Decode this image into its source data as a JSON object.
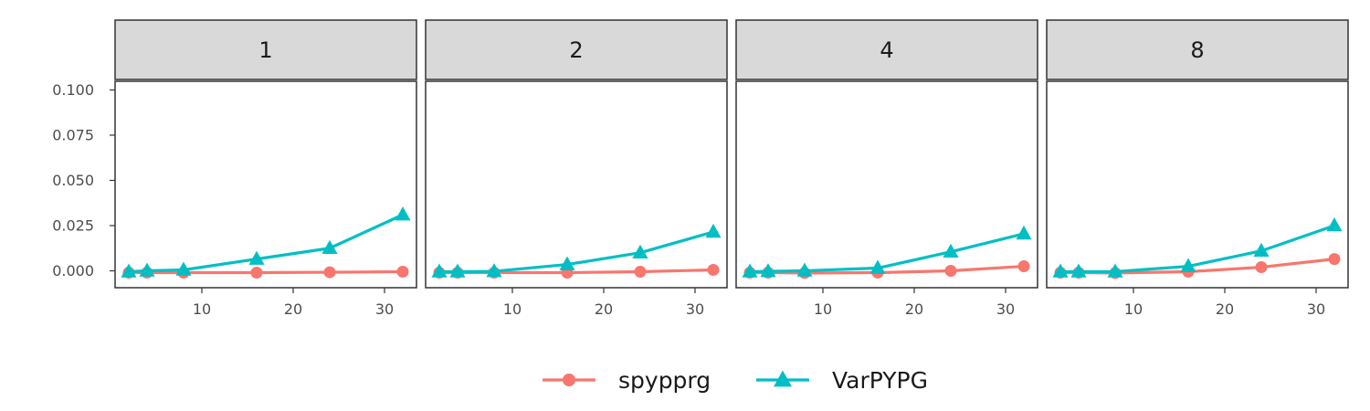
{
  "chart_data": {
    "type": "line",
    "facets": [
      "1",
      "2",
      "4",
      "8"
    ],
    "x": [
      2,
      4,
      8,
      16,
      24,
      32
    ],
    "xticks": [
      10,
      20,
      30
    ],
    "xlim": [
      0.5,
      33.5
    ],
    "ylim": [
      -0.01,
      0.11
    ],
    "yticks": [
      "0.000",
      "0.025",
      "0.050",
      "0.075",
      "0.100"
    ],
    "ytick_values": [
      0.0,
      0.025,
      0.05,
      0.075,
      0.1
    ],
    "legend": {
      "position": "bottom"
    },
    "series": [
      {
        "name": "spypprg",
        "color": "#F8766D",
        "marker": "circle",
        "values": [
          [
            -0.001,
            -0.001,
            -0.001,
            -0.001,
            -0.0008,
            -0.0005
          ],
          [
            -0.001,
            -0.001,
            -0.001,
            -0.001,
            -0.0005,
            0.0005
          ],
          [
            -0.001,
            -0.001,
            -0.0012,
            -0.001,
            0.0,
            0.0025
          ],
          [
            -0.001,
            -0.001,
            -0.0012,
            -0.0005,
            0.002,
            0.0065
          ]
        ]
      },
      {
        "name": "VarPYPG",
        "color": "#00BFC4",
        "marker": "triangle",
        "values": [
          [
            -0.0005,
            0.0,
            0.0005,
            0.0065,
            0.0125,
            0.031
          ],
          [
            -0.0005,
            -0.0005,
            -0.0003,
            0.0035,
            0.01,
            0.0215
          ],
          [
            -0.0005,
            -0.0003,
            0.0,
            0.0015,
            0.0105,
            0.0205
          ],
          [
            -0.0005,
            -0.0005,
            -0.0005,
            0.0025,
            0.011,
            0.025
          ]
        ]
      }
    ]
  }
}
